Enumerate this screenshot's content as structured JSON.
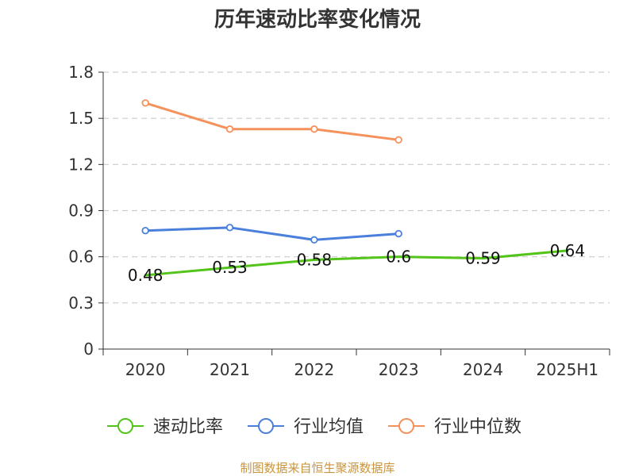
{
  "chart_data": {
    "type": "line",
    "title": "历年速动比率变化情况",
    "categories": [
      "2020",
      "2021",
      "2022",
      "2023",
      "2024",
      "2025H1"
    ],
    "ylim": [
      0,
      1.8
    ],
    "yticks": [
      "0",
      "0.3",
      "0.6",
      "0.9",
      "1.2",
      "1.5",
      "1.8"
    ],
    "grid": true,
    "legend_position": "bottom",
    "series": [
      {
        "name": "速动比率",
        "color": "#52c41a",
        "values": [
          0.48,
          0.53,
          0.58,
          0.6,
          0.59,
          0.64
        ],
        "labels": [
          "0.48",
          "0.53",
          "0.58",
          "0.6",
          "0.59",
          "0.64"
        ],
        "show_labels": true,
        "markers": false
      },
      {
        "name": "行业均值",
        "color": "#4a7fdc",
        "values": [
          0.77,
          0.79,
          0.71,
          0.75,
          null,
          null
        ],
        "show_labels": false,
        "markers": true
      },
      {
        "name": "行业中位数",
        "color": "#f5915a",
        "values": [
          1.6,
          1.43,
          1.43,
          1.36,
          null,
          null
        ],
        "show_labels": false,
        "markers": true
      }
    ],
    "source": "制图数据来自恒生聚源数据库"
  }
}
